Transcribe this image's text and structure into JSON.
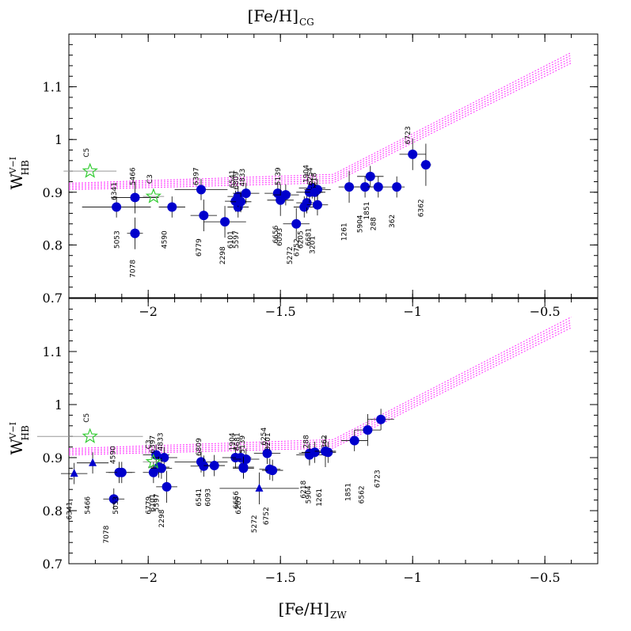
{
  "chart_data": {
    "type": "scatter",
    "top_axis_title": "[Fe/H]",
    "top_axis_sub": "CG",
    "bottom_axis_title": "[Fe/H]",
    "bottom_axis_sub": "ZW",
    "ylabel_main": "W",
    "ylabel_sub": "HB",
    "ylabel_sup": "V−I",
    "xlim": [
      -2.3,
      -0.3
    ],
    "ylim": [
      0.7,
      1.2
    ],
    "x_ticks": [
      -2,
      -1.5,
      -1,
      -0.5
    ],
    "x_tick_labels": [
      "−2",
      "−1.5",
      "−1",
      "−0.5"
    ],
    "y_ticks": [
      0.7,
      0.8,
      0.9,
      1,
      1.1
    ],
    "y_tick_labels": [
      "0.7",
      "0.8",
      "0.9",
      "1",
      "1.1"
    ],
    "grid": false,
    "colors": {
      "points": "#0000cc",
      "stars": "#33cc33",
      "model": "#ff33ff",
      "errorbars": "#000000",
      "xerr": "#999999"
    },
    "model_curves": [
      {
        "x": [
          -2.3,
          -1.3,
          -0.4
        ],
        "y": [
          0.905,
          0.918,
          1.145
        ]
      },
      {
        "x": [
          -2.3,
          -1.3,
          -0.4
        ],
        "y": [
          0.908,
          0.922,
          1.15
        ]
      },
      {
        "x": [
          -2.3,
          -1.3,
          -0.4
        ],
        "y": [
          0.911,
          0.926,
          1.155
        ]
      },
      {
        "x": [
          -2.3,
          -1.3,
          -0.4
        ],
        "y": [
          0.914,
          0.93,
          1.16
        ]
      },
      {
        "x": [
          -2.3,
          -1.3,
          -0.4
        ],
        "y": [
          0.917,
          0.934,
          1.165
        ]
      }
    ],
    "panels": [
      {
        "name": "top",
        "points": [
          {
            "label": "6341",
            "x": -2.12,
            "y": 0.872,
            "xerr": 0.13,
            "yerr": 0.02,
            "lx": -2.12,
            "ly": 0.902,
            "ang": -90
          },
          {
            "label": "5466",
            "x": -2.05,
            "y": 0.89,
            "xerr": 0.09,
            "yerr": 0.03,
            "lx": -2.05,
            "ly": 0.93,
            "ang": -90
          },
          {
            "label": "5053",
            "x": -2.05,
            "y": 0.822,
            "xerr": 0.03,
            "yerr": 0.03,
            "lx": -2.11,
            "ly": 0.81,
            "ang": -90
          },
          {
            "label": "7078",
            "x": -2.05,
            "y": 0.822,
            "xerr": 0.0,
            "yerr": 0.0,
            "lx": -2.05,
            "ly": 0.755,
            "ang": -90
          },
          {
            "label": "4590",
            "x": -1.91,
            "y": 0.872,
            "xerr": 0.05,
            "yerr": 0.02,
            "lx": -1.93,
            "ly": 0.81,
            "ang": -90
          },
          {
            "label": "6397",
            "x": -1.8,
            "y": 0.905,
            "xerr": 0.1,
            "yerr": 0.02,
            "lx": -1.81,
            "ly": 0.93,
            "ang": -90
          },
          {
            "label": "6779",
            "x": -1.79,
            "y": 0.856,
            "xerr": 0.05,
            "yerr": 0.03,
            "lx": -1.8,
            "ly": 0.795,
            "ang": -90
          },
          {
            "label": "2298",
            "x": -1.71,
            "y": 0.844,
            "xerr": 0.08,
            "yerr": 0.03,
            "lx": -1.71,
            "ly": 0.78,
            "ang": -90
          },
          {
            "label": "6101",
            "x": -1.67,
            "y": 0.883,
            "xerr": 0.04,
            "yerr": 0.02,
            "lx": -1.68,
            "ly": 0.81,
            "ang": -90
          },
          {
            "label": "5597",
            "x": -1.66,
            "y": 0.872,
            "xerr": 0.04,
            "yerr": 0.02,
            "lx": -1.66,
            "ly": 0.81,
            "ang": -90
          },
          {
            "label": "6541",
            "x": -1.66,
            "y": 0.892,
            "xerr": 0.04,
            "yerr": 0.02,
            "lx": -1.675,
            "ly": 0.925,
            "ang": -90
          },
          {
            "label": "6809",
            "x": -1.65,
            "y": 0.882,
            "xerr": 0.04,
            "yerr": 0.02,
            "lx": -1.66,
            "ly": 0.922,
            "ang": -90
          },
          {
            "label": "4833",
            "x": -1.63,
            "y": 0.898,
            "xerr": 0.05,
            "yerr": 0.02,
            "lx": -1.635,
            "ly": 0.928,
            "ang": -90
          },
          {
            "label": "5139",
            "x": -1.51,
            "y": 0.898,
            "xerr": 0.05,
            "yerr": 0.02,
            "lx": -1.5,
            "ly": 0.93,
            "ang": -90
          },
          {
            "label": "6656",
            "x": -1.5,
            "y": 0.885,
            "xerr": 0.05,
            "yerr": 0.03,
            "lx": -1.51,
            "ly": 0.82,
            "ang": -90
          },
          {
            "label": "6093",
            "x": -1.48,
            "y": 0.895,
            "xerr": 0.05,
            "yerr": 0.02,
            "lx": -1.495,
            "ly": 0.815,
            "ang": -90
          },
          {
            "label": "5272",
            "x": -1.44,
            "y": 0.84,
            "xerr": 0.05,
            "yerr": 0.03,
            "lx": -1.455,
            "ly": 0.78,
            "ang": -90
          },
          {
            "label": "6752",
            "x": -1.41,
            "y": 0.872,
            "xerr": 0.04,
            "yerr": 0.02,
            "lx": -1.43,
            "ly": 0.795,
            "ang": -90
          },
          {
            "label": "6205",
            "x": -1.4,
            "y": 0.88,
            "xerr": 0.04,
            "yerr": 0.02,
            "lx": -1.415,
            "ly": 0.81,
            "ang": -90
          },
          {
            "label": "1904",
            "x": -1.39,
            "y": 0.9,
            "xerr": 0.05,
            "yerr": 0.02,
            "lx": -1.395,
            "ly": 0.935,
            "ang": -90
          },
          {
            "label": "6254",
            "x": -1.38,
            "y": 0.908,
            "xerr": 0.05,
            "yerr": 0.02,
            "lx": -1.38,
            "ly": 0.93,
            "ang": -90
          },
          {
            "label": "6218",
            "x": -1.36,
            "y": 0.905,
            "xerr": 0.05,
            "yerr": 0.02,
            "lx": -1.365,
            "ly": 0.92,
            "ang": -90
          },
          {
            "label": "6681",
            "x": -1.37,
            "y": 0.9,
            "xerr": 0.04,
            "yerr": 0.02,
            "lx": -1.385,
            "ly": 0.815,
            "ang": -90
          },
          {
            "label": "3201",
            "x": -1.36,
            "y": 0.876,
            "xerr": 0.04,
            "yerr": 0.02,
            "lx": -1.37,
            "ly": 0.8,
            "ang": -90
          },
          {
            "label": "1261",
            "x": -1.24,
            "y": 0.91,
            "xerr": 0.04,
            "yerr": 0.03,
            "lx": -1.25,
            "ly": 0.825,
            "ang": -90
          },
          {
            "label": "5904",
            "x": -1.18,
            "y": 0.91,
            "xerr": 0.04,
            "yerr": 0.02,
            "lx": -1.19,
            "ly": 0.84,
            "ang": -90
          },
          {
            "label": "1851",
            "x": -1.16,
            "y": 0.93,
            "xerr": 0.05,
            "yerr": 0.02,
            "lx": -1.165,
            "ly": 0.865,
            "ang": -90
          },
          {
            "label": "288",
            "x": -1.13,
            "y": 0.91,
            "xerr": 0.04,
            "yerr": 0.02,
            "lx": -1.14,
            "ly": 0.84,
            "ang": -90
          },
          {
            "label": "362",
            "x": -1.06,
            "y": 0.91,
            "xerr": 0.03,
            "yerr": 0.02,
            "lx": -1.07,
            "ly": 0.845,
            "ang": -90
          },
          {
            "label": "6723",
            "x": -1.0,
            "y": 0.972,
            "xerr": 0.05,
            "yerr": 0.03,
            "lx": -1.01,
            "ly": 1.008,
            "ang": -90
          },
          {
            "label": "6362",
            "x": -0.95,
            "y": 0.952,
            "xerr": 0.02,
            "yerr": 0.04,
            "lx": -0.96,
            "ly": 0.87,
            "ang": -90
          }
        ],
        "stars": [
          {
            "label": "C5",
            "x": -2.22,
            "y": 0.94,
            "xerr": 0.1,
            "lx": -2.225,
            "ly": 0.975
          },
          {
            "label": "C3",
            "x": -1.98,
            "y": 0.892,
            "xerr": 0.04,
            "lx": -1.985,
            "ly": 0.925
          }
        ],
        "triangles": []
      },
      {
        "name": "bottom",
        "points": [
          {
            "label": "7078",
            "x": -2.13,
            "y": 0.822,
            "xerr": 0.04,
            "yerr": 0.02,
            "lx": -2.15,
            "ly": 0.755,
            "ang": -90
          },
          {
            "label": "4590",
            "x": -2.11,
            "y": 0.872,
            "xerr": 0.05,
            "yerr": 0.02,
            "lx": -2.125,
            "ly": 0.905,
            "ang": -90
          },
          {
            "label": "5053",
            "x": -2.1,
            "y": 0.872,
            "xerr": 0.05,
            "yerr": 0.02,
            "lx": -2.115,
            "ly": 0.81,
            "ang": -90
          },
          {
            "label": "6397",
            "x": -1.97,
            "y": 0.905,
            "xerr": 0.05,
            "yerr": 0.02,
            "lx": -1.975,
            "ly": 0.925,
            "ang": -90
          },
          {
            "label": "4833",
            "x": -1.94,
            "y": 0.9,
            "xerr": 0.05,
            "yerr": 0.02,
            "lx": -1.945,
            "ly": 0.93,
            "ang": -90
          },
          {
            "label": "6779",
            "x": -1.98,
            "y": 0.872,
            "xerr": 0.04,
            "yerr": 0.02,
            "lx": -1.99,
            "ly": 0.81,
            "ang": -90
          },
          {
            "label": "6101",
            "x": -1.96,
            "y": 0.882,
            "xerr": 0.04,
            "yerr": 0.02,
            "lx": -1.975,
            "ly": 0.815,
            "ang": -90
          },
          {
            "label": "5597",
            "x": -1.95,
            "y": 0.88,
            "xerr": 0.04,
            "yerr": 0.02,
            "lx": -1.96,
            "ly": 0.815,
            "ang": -90
          },
          {
            "label": "2298",
            "x": -1.93,
            "y": 0.845,
            "xerr": 0.04,
            "yerr": 0.03,
            "lx": -1.94,
            "ly": 0.785,
            "ang": -90
          },
          {
            "label": "6809",
            "x": -1.8,
            "y": 0.892,
            "xerr": 0.1,
            "yerr": 0.02,
            "lx": -1.8,
            "ly": 0.92,
            "ang": -90
          },
          {
            "label": "6541",
            "x": -1.79,
            "y": 0.884,
            "xerr": 0.05,
            "yerr": 0.02,
            "lx": -1.8,
            "ly": 0.825,
            "ang": -90
          },
          {
            "label": "6093",
            "x": -1.75,
            "y": 0.885,
            "xerr": 0.04,
            "yerr": 0.02,
            "lx": -1.765,
            "ly": 0.825,
            "ang": -90
          },
          {
            "label": "1904",
            "x": -1.67,
            "y": 0.9,
            "xerr": 0.05,
            "yerr": 0.02,
            "lx": -1.675,
            "ly": 0.93,
            "ang": -90
          },
          {
            "label": "6681",
            "x": -1.65,
            "y": 0.9,
            "xerr": 0.04,
            "yerr": 0.02,
            "lx": -1.655,
            "ly": 0.93,
            "ang": -90
          },
          {
            "label": "5139",
            "x": -1.63,
            "y": 0.897,
            "xerr": 0.05,
            "yerr": 0.02,
            "lx": -1.635,
            "ly": 0.925,
            "ang": -90
          },
          {
            "label": "6656",
            "x": -1.64,
            "y": 0.882,
            "xerr": 0.04,
            "yerr": 0.02,
            "lx": -1.66,
            "ly": 0.82,
            "ang": -90
          },
          {
            "label": "6205",
            "x": -1.64,
            "y": 0.88,
            "xerr": 0.04,
            "yerr": 0.02,
            "lx": -1.65,
            "ly": 0.81,
            "ang": -90
          },
          {
            "label": "6254",
            "x": -1.55,
            "y": 0.908,
            "xerr": 0.05,
            "yerr": 0.02,
            "lx": -1.555,
            "ly": 0.94,
            "ang": -90
          },
          {
            "label": "3201",
            "x": -1.54,
            "y": 0.878,
            "xerr": 0.04,
            "yerr": 0.02,
            "lx": -1.54,
            "ly": 0.93,
            "ang": -90
          },
          {
            "label": "6752",
            "x": -1.53,
            "y": 0.876,
            "xerr": 0.04,
            "yerr": 0.02,
            "lx": -1.545,
            "ly": 0.79,
            "ang": -90
          },
          {
            "label": "288",
            "x": -1.39,
            "y": 0.908,
            "xerr": 0.04,
            "yerr": 0.02,
            "lx": -1.395,
            "ly": 0.93,
            "ang": -90
          },
          {
            "label": "6218",
            "x": -1.39,
            "y": 0.905,
            "xerr": 0.05,
            "yerr": 0.02,
            "lx": -1.405,
            "ly": 0.84,
            "ang": -90
          },
          {
            "label": "5904",
            "x": -1.37,
            "y": 0.91,
            "xerr": 0.05,
            "yerr": 0.02,
            "lx": -1.385,
            "ly": 0.83,
            "ang": -90
          },
          {
            "label": "362",
            "x": -1.32,
            "y": 0.91,
            "xerr": 0.03,
            "yerr": 0.02,
            "lx": -1.325,
            "ly": 0.93,
            "ang": -90
          },
          {
            "label": "1261",
            "x": -1.33,
            "y": 0.912,
            "xerr": 0.04,
            "yerr": 0.03,
            "lx": -1.345,
            "ly": 0.825,
            "ang": -90
          },
          {
            "label": "1851",
            "x": -1.22,
            "y": 0.932,
            "xerr": 0.05,
            "yerr": 0.02,
            "lx": -1.235,
            "ly": 0.835,
            "ang": -90
          },
          {
            "label": "6562",
            "x": -1.17,
            "y": 0.952,
            "xerr": 0.05,
            "yerr": 0.03,
            "lx": -1.185,
            "ly": 0.83,
            "ang": -90
          },
          {
            "label": "6723",
            "x": -1.12,
            "y": 0.972,
            "xerr": 0.05,
            "yerr": 0.02,
            "lx": -1.125,
            "ly": 0.86,
            "ang": -90
          }
        ],
        "stars": [
          {
            "label": "C5",
            "x": -2.22,
            "y": 0.94,
            "xerr": 0.2,
            "lx": -2.225,
            "ly": 0.975
          },
          {
            "label": "C3",
            "x": -1.98,
            "y": 0.892,
            "xerr": 0.04,
            "lx": -1.99,
            "ly": 0.925
          }
        ],
        "triangles": [
          {
            "label": "6341",
            "x": -2.28,
            "y": 0.87,
            "xerr": 0.05,
            "yerr": 0.02,
            "lx": -2.29,
            "ly": 0.8
          },
          {
            "label": "5466",
            "x": -2.21,
            "y": 0.89,
            "xerr": 0.06,
            "yerr": 0.02,
            "lx": -2.22,
            "ly": 0.81
          },
          {
            "label": "5272",
            "x": -1.58,
            "y": 0.842,
            "xerr": 0.15,
            "yerr": 0.03,
            "lx": -1.59,
            "ly": 0.775
          }
        ]
      }
    ]
  }
}
